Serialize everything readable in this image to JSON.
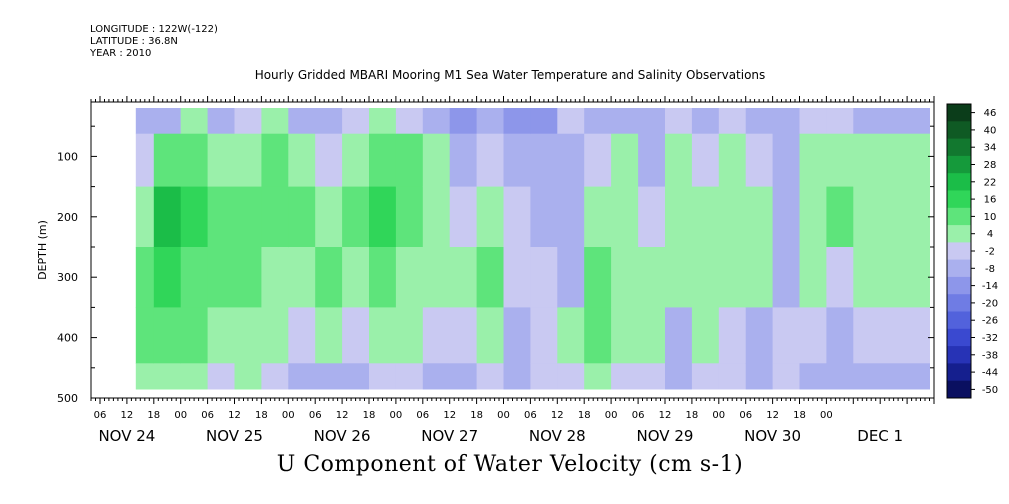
{
  "header": {
    "longitude": "LONGITUDE : 122W(-122)",
    "latitude": "LATITUDE : 36.8N",
    "year": "YEAR : 2010",
    "title": "Hourly Gridded MBARI Mooring M1 Sea Water Temperature and Salinity Observations"
  },
  "chart_data": {
    "type": "heatmap",
    "title": "U Component of Water Velocity (cm s-1)",
    "ylabel": "DEPTH (m)",
    "xlabel": "",
    "y_ticks": [
      100,
      200,
      300,
      400,
      500
    ],
    "ylim": [
      500,
      10
    ],
    "y_reversed": true,
    "data_depth_range": [
      20,
      485
    ],
    "x_hour_ticks": [
      "06",
      "12",
      "18",
      "00",
      "06",
      "12",
      "18",
      "00",
      "06",
      "12",
      "18",
      "00",
      "06",
      "12",
      "18",
      "00",
      "06",
      "12",
      "18",
      "00",
      "06",
      "12",
      "18",
      "00",
      "06",
      "12",
      "18",
      "00"
    ],
    "x_day_labels": [
      "NOV 24",
      "NOV 25",
      "NOV 26",
      "NOV 27",
      "NOV 28",
      "NOV 29",
      "NOV 30",
      "DEC  1"
    ],
    "data_start": "NOV 24 10:00",
    "colorbar": {
      "labels": [
        "46",
        "40",
        "34",
        "28",
        "22",
        "16",
        "10",
        "4",
        "-2",
        "-8",
        "-14",
        "-20",
        "-26",
        "-32",
        "-38",
        "-44",
        "-50"
      ],
      "colors": [
        "#0b3d1a",
        "#0f5a24",
        "#12782f",
        "#159a3b",
        "#1bbd48",
        "#30d659",
        "#5ee47b",
        "#9af0aa",
        "#c9c9f2",
        "#aab0ee",
        "#8d96ea",
        "#6f7ce4",
        "#5262dc",
        "#3a49d0",
        "#2733b6",
        "#151f8e",
        "#0a0f60"
      ]
    },
    "profile_columns": [
      {
        "time": "NOV 24 10:00",
        "u": [
          -10,
          -4,
          6,
          10,
          8,
          6
        ]
      },
      {
        "time": "NOV 24 14:00",
        "u": [
          -6,
          12,
          18,
          14,
          10,
          6
        ]
      },
      {
        "time": "NOV 24 20:00",
        "u": [
          2,
          10,
          16,
          12,
          8,
          4
        ]
      },
      {
        "time": "NOV 25 02:00",
        "u": [
          -8,
          4,
          10,
          10,
          6,
          -2
        ]
      },
      {
        "time": "NOV 25 08:00",
        "u": [
          -4,
          6,
          12,
          8,
          4,
          2
        ]
      },
      {
        "time": "NOV 25 14:00",
        "u": [
          6,
          10,
          10,
          6,
          2,
          -2
        ]
      },
      {
        "time": "NOV 25 20:00",
        "u": [
          -6,
          4,
          8,
          4,
          -4,
          -8
        ]
      },
      {
        "time": "NOV 26 02:00",
        "u": [
          -10,
          -2,
          6,
          8,
          2,
          -6
        ]
      },
      {
        "time": "NOV 26 08:00",
        "u": [
          -4,
          4,
          8,
          6,
          -2,
          -6
        ]
      },
      {
        "time": "NOV 26 14:00",
        "u": [
          2,
          10,
          14,
          10,
          4,
          0
        ]
      },
      {
        "time": "NOV 26 20:00",
        "u": [
          -2,
          8,
          10,
          6,
          2,
          -4
        ]
      },
      {
        "time": "NOV 27 02:00",
        "u": [
          -8,
          2,
          4,
          2,
          -4,
          -8
        ]
      },
      {
        "time": "NOV 27 08:00",
        "u": [
          -12,
          -6,
          0,
          2,
          -2,
          -6
        ]
      },
      {
        "time": "NOV 27 14:00",
        "u": [
          -10,
          -4,
          6,
          8,
          4,
          0
        ]
      },
      {
        "time": "NOV 27 20:00",
        "u": [
          -14,
          -10,
          -4,
          -2,
          -6,
          -10
        ]
      },
      {
        "time": "NOV 28 02:00",
        "u": [
          -12,
          -10,
          -8,
          -4,
          0,
          -4
        ]
      },
      {
        "time": "NOV 28 08:00",
        "u": [
          -4,
          -6,
          -10,
          -6,
          2,
          -2
        ]
      },
      {
        "time": "NOV 28 14:00",
        "u": [
          -8,
          -4,
          6,
          10,
          12,
          6
        ]
      },
      {
        "time": "NOV 28 20:00",
        "u": [
          -6,
          2,
          6,
          6,
          4,
          -2
        ]
      },
      {
        "time": "NOV 29 02:00",
        "u": [
          -10,
          -6,
          -2,
          4,
          2,
          -4
        ]
      },
      {
        "time": "NOV 29 08:00",
        "u": [
          -4,
          2,
          4,
          2,
          -6,
          -8
        ]
      },
      {
        "time": "NOV 29 14:00",
        "u": [
          -8,
          -4,
          2,
          4,
          2,
          -4
        ]
      },
      {
        "time": "NOV 29 20:00",
        "u": [
          -4,
          4,
          6,
          4,
          0,
          -4
        ]
      },
      {
        "time": "NOV 30 02:00",
        "u": [
          -10,
          -2,
          4,
          2,
          -6,
          -10
        ]
      },
      {
        "time": "NOV 30 08:00",
        "u": [
          -6,
          -8,
          -10,
          -6,
          -4,
          -2
        ]
      },
      {
        "time": "NOV 30 14:00",
        "u": [
          -2,
          4,
          6,
          2,
          -2,
          -6
        ]
      },
      {
        "time": "NOV 30 20:00",
        "u": [
          0,
          6,
          8,
          -2,
          -8,
          -6
        ]
      },
      {
        "time": "DEC 1 02:00",
        "u": [
          -6,
          2,
          6,
          2,
          -4,
          -8
        ]
      }
    ],
    "profile_depths": [
      25,
      100,
      200,
      300,
      400,
      485
    ]
  }
}
